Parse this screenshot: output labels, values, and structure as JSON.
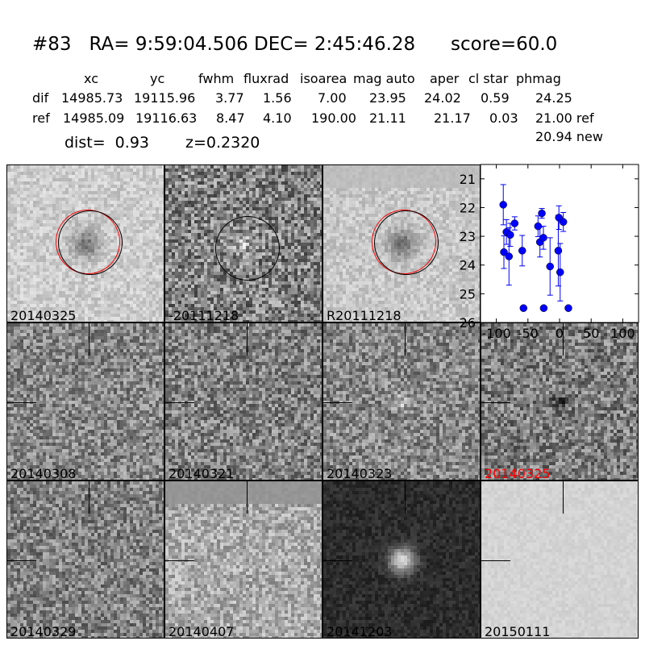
{
  "title": "#83   RA= 9:59:04.506 DEC= 2:45:46.28      score=60.0",
  "table": {
    "headers": [
      "xc",
      "yc",
      "fwhm",
      "fluxrad",
      "isoarea",
      "mag auto",
      "aper",
      "cl star",
      "phmag"
    ],
    "rows": [
      {
        "label": "dif",
        "values": [
          "14985.73",
          "19115.96",
          "3.77",
          "1.56",
          "7.00",
          "23.95",
          "24.02",
          "0.59",
          "24.25"
        ]
      },
      {
        "label": "ref",
        "values": [
          "14985.09",
          "19116.63",
          "8.47",
          "4.10",
          "190.00",
          "21.11",
          "21.17",
          "0.03",
          "21.00 ref"
        ]
      }
    ],
    "extra_phmag": "20.94 new",
    "dist": "dist=  0.93",
    "z": "z=0.2320"
  },
  "stamps": [
    {
      "label": "20140325",
      "kind": "new"
    },
    {
      "label": "-20111218",
      "kind": "diff"
    },
    {
      "label": "R20111218",
      "kind": "ref"
    },
    {
      "label": "20140308",
      "kind": "epoch"
    },
    {
      "label": "20140321",
      "kind": "epoch"
    },
    {
      "label": "20140323",
      "kind": "epoch"
    },
    {
      "label": "20140325",
      "kind": "epoch",
      "highlight": true
    },
    {
      "label": "20140329",
      "kind": "epoch"
    },
    {
      "label": "20140407",
      "kind": "epoch"
    },
    {
      "label": "20141203",
      "kind": "epoch"
    },
    {
      "label": "20150111",
      "kind": "epoch"
    }
  ],
  "colors": {
    "highlight": "#ff0000",
    "points": "#0000ff",
    "circle_red": "#ff0000",
    "circle_black": "#000000"
  },
  "chart_data": {
    "type": "scatter",
    "xlim": [
      -125,
      125
    ],
    "ylim": [
      26,
      20.5
    ],
    "y_inverted": true,
    "xticks": [
      "-100",
      "-50",
      "0",
      "50",
      "100"
    ],
    "xtick_values": [
      -100,
      -50,
      0,
      50,
      100
    ],
    "yticks": [
      "21",
      "22",
      "23",
      "24",
      "25",
      "26"
    ],
    "ytick_values": [
      21,
      22,
      23,
      24,
      25,
      26
    ],
    "points": [
      {
        "x": -89,
        "y": 21.9,
        "err": 0.7
      },
      {
        "x": -88,
        "y": 23.55,
        "err": 0.57
      },
      {
        "x": -84,
        "y": 22.85,
        "err": 0.43
      },
      {
        "x": -80,
        "y": 23.7,
        "err": 1.0
      },
      {
        "x": -78,
        "y": 22.95,
        "err": 0.4
      },
      {
        "x": -71,
        "y": 22.55,
        "err": 0.23
      },
      {
        "x": -59,
        "y": 23.5,
        "err": 0.53
      },
      {
        "x": -57,
        "y": 25.5,
        "err": 0.05
      },
      {
        "x": -34,
        "y": 22.65,
        "err": 0.36
      },
      {
        "x": -31,
        "y": 23.2,
        "err": 0.52
      },
      {
        "x": -28,
        "y": 22.2,
        "err": 0.17
      },
      {
        "x": -25.5,
        "y": 23.05,
        "err": 0.4
      },
      {
        "x": -25,
        "y": 25.5,
        "err": 0.05
      },
      {
        "x": -15,
        "y": 24.05,
        "err": 1.0
      },
      {
        "x": -2,
        "y": 23.5,
        "err": 1.23
      },
      {
        "x": -1,
        "y": 22.35,
        "err": 0.41
      },
      {
        "x": 1,
        "y": 24.25,
        "err": 1.0
      },
      {
        "x": 6,
        "y": 22.5,
        "err": 0.33
      },
      {
        "x": 14,
        "y": 25.5,
        "err": 0.05
      }
    ]
  }
}
